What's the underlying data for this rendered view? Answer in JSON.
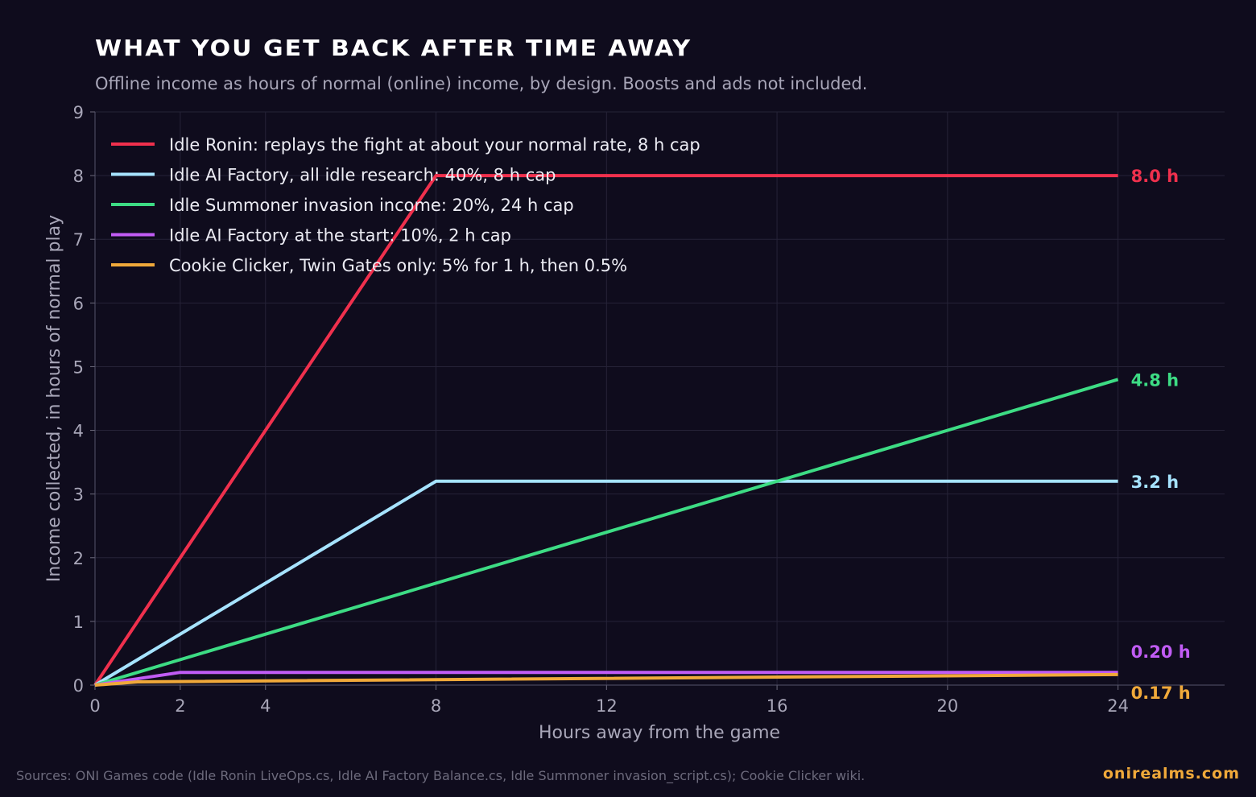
{
  "chart_data": {
    "type": "line",
    "title": "WHAT YOU GET BACK AFTER TIME AWAY",
    "subtitle": "Offline income as hours of normal (online) income, by design. Boosts and ads not included.",
    "xlabel": "Hours away from the game",
    "ylabel": "Income collected, in hours of normal play",
    "xlim": [
      0,
      26.5
    ],
    "ylim": [
      0,
      9
    ],
    "xticks": [
      0,
      2,
      4,
      8,
      12,
      16,
      20,
      24
    ],
    "yticks": [
      0,
      1,
      2,
      3,
      4,
      5,
      6,
      7,
      8,
      9
    ],
    "grid": true,
    "legend_position": "top-left",
    "series": [
      {
        "name": "Idle Ronin: replays the fight at about your normal rate, 8 h cap",
        "color": "#f0304d",
        "points": [
          [
            0,
            0
          ],
          [
            8,
            8
          ],
          [
            24,
            8
          ]
        ],
        "end_label": "8.0 h"
      },
      {
        "name": "Idle AI Factory, all idle research: 40%, 8 h cap",
        "color": "#a6e3ff",
        "points": [
          [
            0,
            0
          ],
          [
            8,
            3.2
          ],
          [
            24,
            3.2
          ]
        ],
        "end_label": "3.2 h"
      },
      {
        "name": "Idle Summoner invasion income: 20%, 24 h cap",
        "color": "#3ddc84",
        "points": [
          [
            0,
            0
          ],
          [
            24,
            4.8
          ]
        ],
        "end_label": "4.8 h"
      },
      {
        "name": "Idle AI Factory at the start: 10%, 2 h cap",
        "color": "#c15cf5",
        "points": [
          [
            0,
            0
          ],
          [
            2,
            0.2
          ],
          [
            24,
            0.2
          ]
        ],
        "end_label": "0.20 h"
      },
      {
        "name": "Cookie Clicker, Twin Gates only: 5% for 1 h, then 0.5%",
        "color": "#f0a93a",
        "points": [
          [
            0,
            0
          ],
          [
            1,
            0.05
          ],
          [
            24,
            0.165
          ]
        ],
        "end_label": "0.17 h"
      }
    ]
  },
  "footer": {
    "source": "Sources: ONI Games code (Idle Ronin LiveOps.cs, Idle AI Factory Balance.cs, Idle Summoner invasion_script.cs); Cookie Clicker wiki.",
    "brand": "onirealms.com"
  }
}
